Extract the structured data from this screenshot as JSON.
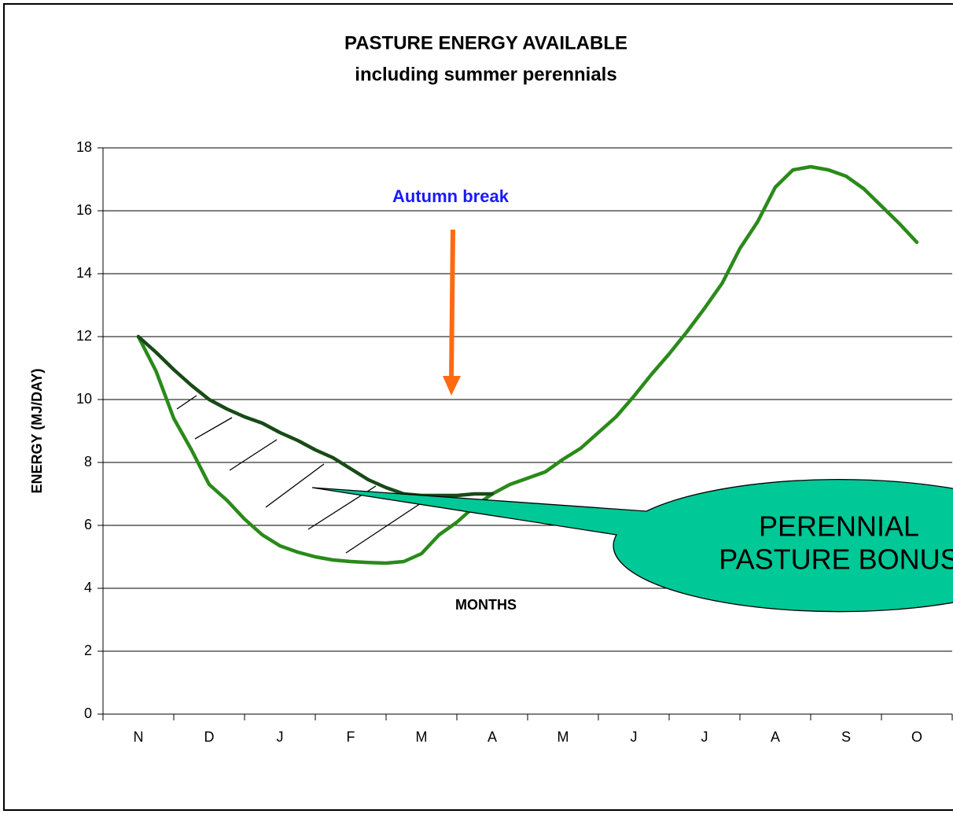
{
  "chart_data": {
    "type": "line",
    "title": [
      "PASTURE ENERGY AVAILABLE",
      "including summer perennials"
    ],
    "x_label": "MONTHS",
    "y_label": "ENERGY (MJ/DAY)",
    "categories": [
      "N",
      null,
      null,
      null,
      "D",
      null,
      null,
      null,
      "J",
      null,
      null,
      null,
      "F",
      null,
      null,
      null,
      "M",
      null,
      null,
      null,
      "A",
      null,
      null,
      null,
      "M",
      null,
      null,
      null,
      "J",
      null,
      null,
      null,
      "J",
      null,
      null,
      null,
      "A",
      null,
      null,
      null,
      "S",
      null,
      null,
      null,
      "O"
    ],
    "series": [
      {
        "color": "#2a8a1a",
        "values": [
          12,
          10.9,
          9.4,
          8.4,
          7.3,
          6.8,
          6.2,
          5.7,
          5.35,
          5.15,
          5.0,
          4.9,
          4.85,
          4.82,
          4.8,
          4.85,
          5.1,
          5.7,
          6.1,
          6.6,
          7.0,
          7.3,
          7.5,
          7.7,
          8.1,
          8.45,
          8.95,
          9.45,
          10.1,
          10.8,
          11.45,
          12.15,
          12.9,
          13.7,
          14.8,
          15.65,
          16.75,
          17.3,
          17.4,
          17.3,
          17.1,
          16.7,
          16.15,
          15.6,
          15.0
        ]
      },
      {
        "color": "#174a17",
        "values": [
          12,
          11.5,
          10.95,
          10.45,
          10.0,
          9.7,
          9.45,
          9.25,
          8.95,
          8.7,
          8.4,
          8.15,
          7.8,
          7.45,
          7.2,
          7.0,
          6.95,
          6.95,
          6.95,
          7.0,
          7.0,
          null,
          null,
          null,
          null,
          null,
          null,
          null,
          null,
          null,
          null,
          null,
          null,
          null,
          null,
          null,
          null,
          null,
          null,
          null,
          null,
          null,
          null,
          null,
          null
        ]
      }
    ],
    "ylim": [
      0,
      18
    ],
    "yticks": [
      0,
      2,
      4,
      6,
      8,
      10,
      12,
      14,
      16,
      18
    ],
    "grid": true,
    "annotations": [
      "Autumn break",
      "PERENNIAL",
      "PASTURE BONUS"
    ]
  }
}
